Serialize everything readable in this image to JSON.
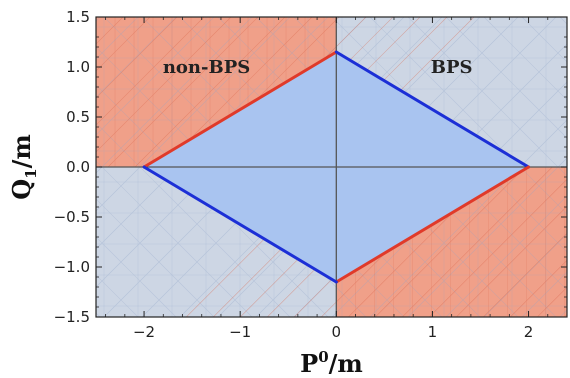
{
  "chart_data": {
    "type": "area",
    "xlabel": {
      "main": "P",
      "sup": "0",
      "tail": "/m"
    },
    "ylabel": {
      "main": "Q",
      "sub": "1",
      "tail": "/m"
    },
    "xlim": [
      -2.5,
      2.4
    ],
    "ylim": [
      -1.5,
      1.5
    ],
    "x_ticks": [
      -2,
      -1,
      0,
      1,
      2
    ],
    "y_ticks": [
      -1.5,
      -1.0,
      -0.5,
      0.0,
      0.5,
      1.0,
      1.5
    ],
    "x_tick_labels": [
      "−2",
      "−1",
      "0",
      "1",
      "2"
    ],
    "y_tick_labels": [
      "−1.5",
      "−1.0",
      "−0.5",
      "0.0",
      "0.5",
      "1.0",
      "1.5"
    ],
    "region_labels": [
      {
        "text": "non-BPS",
        "x": -1.35,
        "y": 1.0
      },
      {
        "text": "BPS",
        "x": 1.2,
        "y": 1.0
      }
    ],
    "regions": [
      {
        "name": "non-BPS",
        "quadrants": [
          "top-left",
          "bottom-right"
        ],
        "color": "#f0a089"
      },
      {
        "name": "BPS",
        "quadrants": [
          "top-right",
          "bottom-left"
        ],
        "color": "#cdd6e4"
      }
    ],
    "diamond": {
      "vertices": [
        [
          2,
          0
        ],
        [
          0,
          1.15
        ],
        [
          -2,
          0
        ],
        [
          0,
          -1.15
        ]
      ],
      "fill": "#a9c4f0"
    },
    "boundary_edges": [
      {
        "from": [
          -2,
          0
        ],
        "to": [
          0,
          1.15
        ],
        "color": "#e03a2a"
      },
      {
        "from": [
          0,
          1.15
        ],
        "to": [
          2,
          0
        ],
        "color": "#1c2fd6"
      },
      {
        "from": [
          2,
          0
        ],
        "to": [
          0,
          -1.15
        ],
        "color": "#e03a2a"
      },
      {
        "from": [
          0,
          -1.15
        ],
        "to": [
          -2,
          0
        ],
        "color": "#1c2fd6"
      }
    ],
    "grid": false
  }
}
